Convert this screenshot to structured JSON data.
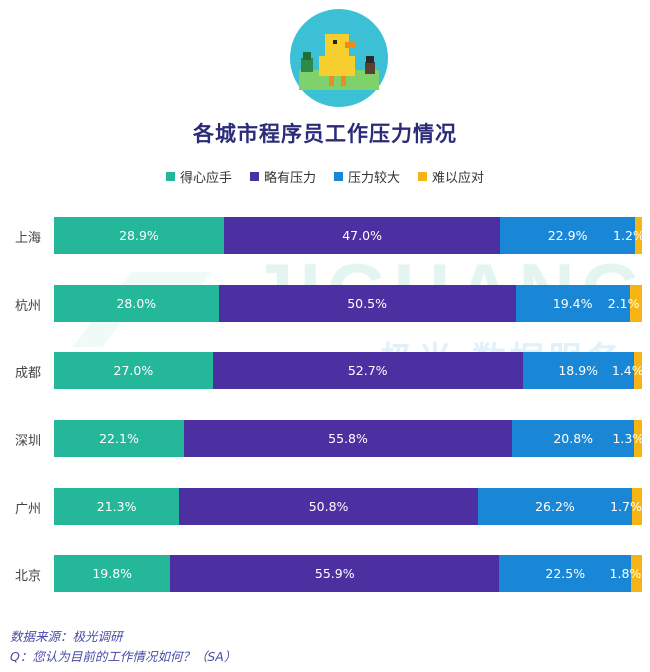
{
  "title": "各城市程序员工作压力情况",
  "watermark": {
    "main": "JIGUANG",
    "sub": "极光 数据服务"
  },
  "chart_data": {
    "type": "bar",
    "orientation": "horizontal",
    "stacked": true,
    "normalized": true,
    "categories": [
      "上海",
      "杭州",
      "成都",
      "深圳",
      "广州",
      "北京"
    ],
    "series": [
      {
        "name": "得心应手",
        "color": "#25b79a",
        "values": [
          28.9,
          28.0,
          27.0,
          22.1,
          21.3,
          19.8
        ]
      },
      {
        "name": "略有压力",
        "color": "#4c2fa1",
        "values": [
          47.0,
          50.5,
          52.7,
          55.8,
          50.8,
          55.9
        ]
      },
      {
        "name": "压力较大",
        "color": "#1a87d6",
        "values": [
          22.9,
          19.4,
          18.9,
          20.8,
          26.2,
          22.5
        ]
      },
      {
        "name": "难以应对",
        "color": "#f6b514",
        "values": [
          1.2,
          2.1,
          1.4,
          1.3,
          1.7,
          1.8
        ]
      }
    ],
    "value_suffix": "%",
    "legend_position": "top",
    "grid": false
  },
  "source": "数据来源：极光调研",
  "question": "Q：您认为目前的工作情况如何？（SA）"
}
